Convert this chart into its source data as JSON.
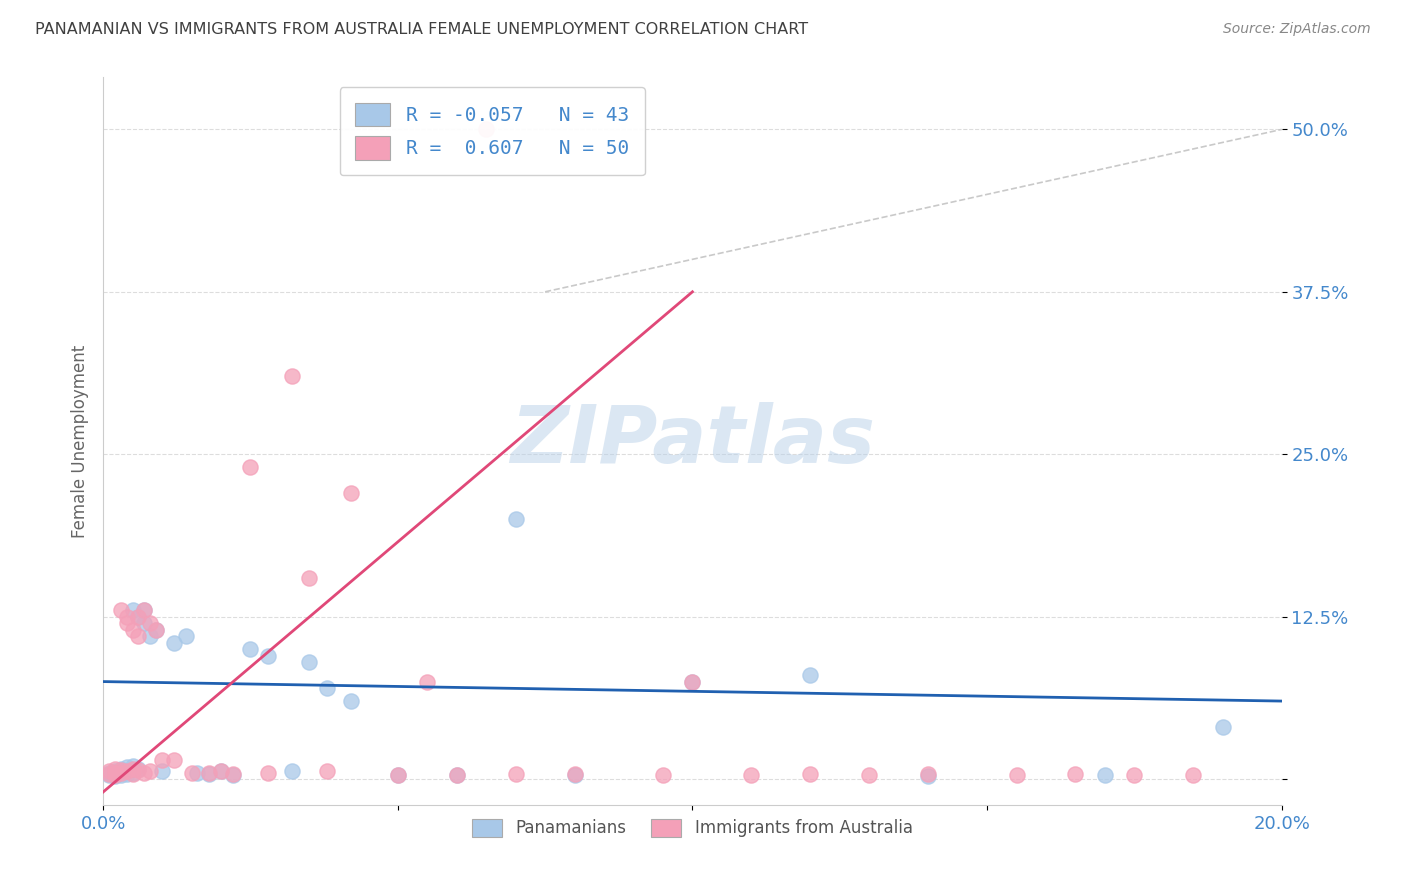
{
  "title": "PANAMANIAN VS IMMIGRANTS FROM AUSTRALIA FEMALE UNEMPLOYMENT CORRELATION CHART",
  "source": "Source: ZipAtlas.com",
  "ylabel": "Female Unemployment",
  "xlim": [
    0.0,
    0.2
  ],
  "ylim": [
    -0.02,
    0.54
  ],
  "yticks": [
    0.0,
    0.125,
    0.25,
    0.375,
    0.5
  ],
  "ytick_labels": [
    "",
    "12.5%",
    "25.0%",
    "37.5%",
    "50.0%"
  ],
  "xticks": [
    0.0,
    0.05,
    0.1,
    0.15,
    0.2
  ],
  "xtick_labels": [
    "0.0%",
    "",
    "",
    "",
    "20.0%"
  ],
  "watermark": "ZIPatlas",
  "legend_r1": "R = -0.057   N = 43",
  "legend_r2": "R =  0.607   N = 50",
  "blue_color": "#a8c8e8",
  "pink_color": "#f4a0b8",
  "line_blue": "#2060b0",
  "line_pink": "#e04878",
  "line_dashed": "#c0c0c0",
  "title_color": "#404040",
  "axis_color": "#4488cc",
  "background_color": "#ffffff",
  "panel_color": "#ffffff",
  "blue_R": -0.057,
  "pink_R": 0.607,
  "blue_scatter_x": [
    0.001,
    0.001,
    0.002,
    0.002,
    0.002,
    0.003,
    0.003,
    0.003,
    0.003,
    0.004,
    0.004,
    0.004,
    0.005,
    0.005,
    0.005,
    0.006,
    0.006,
    0.007,
    0.007,
    0.008,
    0.009,
    0.01,
    0.012,
    0.014,
    0.016,
    0.018,
    0.02,
    0.022,
    0.025,
    0.028,
    0.032,
    0.035,
    0.038,
    0.042,
    0.05,
    0.06,
    0.07,
    0.08,
    0.1,
    0.12,
    0.14,
    0.17,
    0.19
  ],
  "blue_scatter_y": [
    0.005,
    0.003,
    0.004,
    0.006,
    0.002,
    0.008,
    0.005,
    0.003,
    0.007,
    0.004,
    0.009,
    0.006,
    0.01,
    0.005,
    0.13,
    0.125,
    0.008,
    0.13,
    0.12,
    0.11,
    0.115,
    0.006,
    0.105,
    0.11,
    0.005,
    0.004,
    0.006,
    0.003,
    0.1,
    0.095,
    0.006,
    0.09,
    0.07,
    0.06,
    0.003,
    0.003,
    0.2,
    0.003,
    0.075,
    0.08,
    0.002,
    0.003,
    0.04
  ],
  "pink_scatter_x": [
    0.001,
    0.001,
    0.002,
    0.002,
    0.002,
    0.003,
    0.003,
    0.003,
    0.004,
    0.004,
    0.004,
    0.005,
    0.005,
    0.005,
    0.006,
    0.006,
    0.006,
    0.007,
    0.007,
    0.008,
    0.008,
    0.009,
    0.01,
    0.012,
    0.015,
    0.018,
    0.02,
    0.022,
    0.025,
    0.028,
    0.032,
    0.035,
    0.038,
    0.042,
    0.05,
    0.055,
    0.06,
    0.065,
    0.07,
    0.08,
    0.095,
    0.1,
    0.11,
    0.12,
    0.13,
    0.14,
    0.155,
    0.165,
    0.175,
    0.185
  ],
  "pink_scatter_y": [
    0.004,
    0.006,
    0.005,
    0.003,
    0.008,
    0.007,
    0.13,
    0.005,
    0.12,
    0.006,
    0.125,
    0.115,
    0.004,
    0.008,
    0.11,
    0.007,
    0.125,
    0.005,
    0.13,
    0.006,
    0.12,
    0.115,
    0.015,
    0.015,
    0.005,
    0.005,
    0.006,
    0.004,
    0.24,
    0.005,
    0.31,
    0.155,
    0.006,
    0.22,
    0.003,
    0.075,
    0.003,
    0.5,
    0.004,
    0.004,
    0.003,
    0.075,
    0.003,
    0.004,
    0.003,
    0.004,
    0.003,
    0.004,
    0.003,
    0.003
  ],
  "blue_line_x0": 0.0,
  "blue_line_y0": 0.075,
  "blue_line_x1": 0.2,
  "blue_line_y1": 0.06,
  "pink_line_x0": 0.0,
  "pink_line_y0": -0.01,
  "pink_line_x1": 0.1,
  "pink_line_y1": 0.375,
  "dash_line_x0": 0.075,
  "dash_line_y0": 0.375,
  "dash_line_x1": 0.2,
  "dash_line_y1": 0.5
}
